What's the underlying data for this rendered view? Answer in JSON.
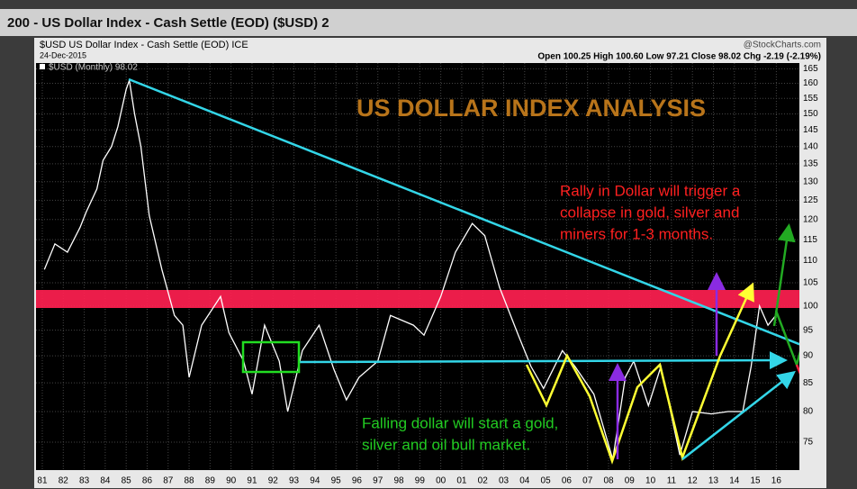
{
  "chart_data": {
    "type": "line",
    "title": "200 - US Dollar Index - Cash Settle (EOD) ($USD) 2",
    "subtitle": "$USD US Dollar Index - Cash Settle (EOD) ICE",
    "date": "24-Dec-2015",
    "source": "@StockCharts.com",
    "quote": "Open 100.25  High 100.60  Low 97.21  Close 98.02  Chg -2.19 (-2.19%)",
    "annotations": {
      "heading": "US DOLLAR INDEX ANALYSIS",
      "rally": [
        "Rally in Dollar will trigger a",
        "collapse in gold, silver and",
        "miners for 1-3 months."
      ],
      "falling": [
        "Falling dollar will start a gold,",
        "silver and oil bull market."
      ]
    },
    "log_scale": true,
    "grid": true,
    "x": [
      1981.1,
      1981.6,
      1982.2,
      1982.8,
      1983.1,
      1983.6,
      1983.9,
      1984.3,
      1984.6,
      1985.0,
      1985.15,
      1985.4,
      1985.7,
      1986.1,
      1986.7,
      1987.3,
      1987.7,
      1988.0,
      1988.6,
      1989.5,
      1989.9,
      1990.6,
      1991.0,
      1991.6,
      1992.3,
      1992.7,
      1993.4,
      1994.2,
      1994.9,
      1995.5,
      1996.1,
      1997.0,
      1997.6,
      1998.7,
      1999.2,
      2000.0,
      2000.7,
      2001.5,
      2002.1,
      2002.8,
      2003.7,
      2004.3,
      2004.9,
      2005.8,
      2006.4,
      2007.3,
      2008.2,
      2008.8,
      2009.2,
      2009.9,
      2010.5,
      2011.4,
      2012.0,
      2012.9,
      2013.7,
      2014.4,
      2014.8,
      2015.2,
      2015.6,
      2015.98
    ],
    "series": [
      {
        "name": "$USD (Monthly) 98.02",
        "color": "#ffffff",
        "values": [
          108,
          114,
          112,
          118,
          122,
          128,
          136,
          140,
          146,
          158,
          161,
          150,
          140,
          121,
          108,
          98,
          96,
          86,
          96,
          102,
          94.5,
          89,
          83,
          96,
          89,
          80,
          91,
          96,
          87.5,
          82,
          86,
          89,
          98,
          96,
          94,
          102,
          112,
          119,
          116,
          104,
          94,
          88,
          84,
          91,
          88,
          83,
          72.3,
          86,
          89,
          81,
          88,
          73,
          80,
          79.6,
          80,
          80,
          88,
          100,
          96,
          98.02
        ]
      }
    ],
    "xlim": [
      1980.7,
      2017.1
    ],
    "xticks": [
      {
        "value": 1981,
        "label": "81"
      },
      {
        "value": 1982,
        "label": "82"
      },
      {
        "value": 1983,
        "label": "83"
      },
      {
        "value": 1984,
        "label": "84"
      },
      {
        "value": 1985,
        "label": "85"
      },
      {
        "value": 1986,
        "label": "86"
      },
      {
        "value": 1987,
        "label": "87"
      },
      {
        "value": 1988,
        "label": "88"
      },
      {
        "value": 1989,
        "label": "89"
      },
      {
        "value": 1990,
        "label": "90"
      },
      {
        "value": 1991,
        "label": "91"
      },
      {
        "value": 1992,
        "label": "92"
      },
      {
        "value": 1993,
        "label": "93"
      },
      {
        "value": 1994,
        "label": "94"
      },
      {
        "value": 1995,
        "label": "95"
      },
      {
        "value": 1996,
        "label": "96"
      },
      {
        "value": 1997,
        "label": "97"
      },
      {
        "value": 1998,
        "label": "98"
      },
      {
        "value": 1999,
        "label": "99"
      },
      {
        "value": 2000,
        "label": "00"
      },
      {
        "value": 2001,
        "label": "01"
      },
      {
        "value": 2002,
        "label": "02"
      },
      {
        "value": 2003,
        "label": "03"
      },
      {
        "value": 2004,
        "label": "04"
      },
      {
        "value": 2005,
        "label": "05"
      },
      {
        "value": 2006,
        "label": "06"
      },
      {
        "value": 2007,
        "label": "07"
      },
      {
        "value": 2008,
        "label": "08"
      },
      {
        "value": 2009,
        "label": "09"
      },
      {
        "value": 2010,
        "label": "10"
      },
      {
        "value": 2011,
        "label": "11"
      },
      {
        "value": 2012,
        "label": "12"
      },
      {
        "value": 2013,
        "label": "13"
      },
      {
        "value": 2014,
        "label": "14"
      },
      {
        "value": 2015,
        "label": "15"
      },
      {
        "value": 2016,
        "label": "16"
      }
    ],
    "ylim": [
      70.7,
      167
    ],
    "yticks": [
      75,
      80,
      85,
      90,
      95,
      100,
      105,
      110,
      115,
      120,
      125,
      130,
      135,
      140,
      145,
      150,
      155,
      160,
      165
    ]
  }
}
